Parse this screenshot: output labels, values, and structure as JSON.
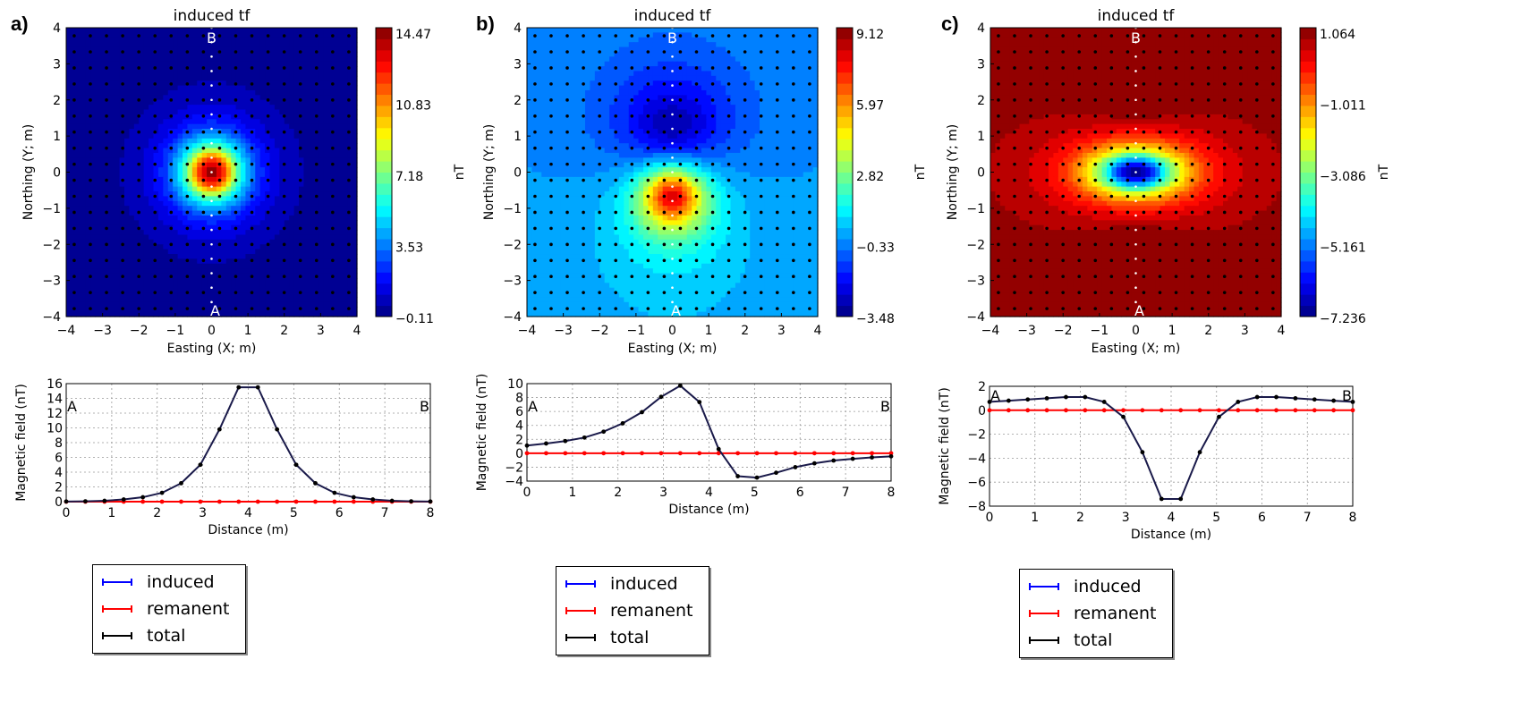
{
  "panels": [
    {
      "label": "a)",
      "map": {
        "title": "induced tf",
        "xlabel": "Easting (X; m)",
        "ylabel": "Northing (Y; m)",
        "cbar_label": "nT",
        "cbar_ticks": [
          "14.47",
          "10.83",
          "7.18",
          "3.53",
          "−0.11"
        ],
        "start_label": "A",
        "end_label": "B"
      },
      "profile": {
        "xlabel": "Distance (m)",
        "ylabel": "Magnetic field (nT)",
        "start_label": "A",
        "end_label": "B"
      }
    },
    {
      "label": "b)",
      "map": {
        "title": "induced tf",
        "xlabel": "Easting (X; m)",
        "ylabel": "Northing (Y; m)",
        "cbar_label": "nT",
        "cbar_ticks": [
          "9.12",
          "5.97",
          "2.82",
          "−0.33",
          "−3.48"
        ],
        "start_label": "A",
        "end_label": "B"
      },
      "profile": {
        "xlabel": "Distance (m)",
        "ylabel": "Magnetic field (nT)",
        "start_label": "A",
        "end_label": "B"
      }
    },
    {
      "label": "c)",
      "map": {
        "title": "induced tf",
        "xlabel": "Easting (X; m)",
        "ylabel": "Northing (Y; m)",
        "cbar_label": "nT",
        "cbar_ticks": [
          "1.064",
          "−1.011",
          "−3.086",
          "−5.161",
          "−7.236"
        ],
        "start_label": "A",
        "end_label": "B"
      },
      "profile": {
        "xlabel": "Distance (m)",
        "ylabel": "Magnetic field (nT)",
        "start_label": "A",
        "end_label": "B"
      }
    }
  ],
  "legend": {
    "items": [
      {
        "label": "induced",
        "color": "#0000ff"
      },
      {
        "label": "remanent",
        "color": "#ff0000"
      },
      {
        "label": "total",
        "color": "#000000"
      }
    ]
  },
  "chart_data": [
    {
      "type": "heatmap",
      "panel": "a",
      "title": "induced tf",
      "xlabel": "Easting (X; m)",
      "ylabel": "Northing (Y; m)",
      "xlim": [
        -4,
        4
      ],
      "ylim": [
        -4,
        4
      ],
      "x_ticks": [
        -4,
        -3,
        -2,
        -1,
        0,
        1,
        2,
        3,
        4
      ],
      "y_ticks": [
        -4,
        -3,
        -2,
        -1,
        0,
        1,
        2,
        3,
        4
      ],
      "colorbar": {
        "label": "nT",
        "min": -0.11,
        "max": 14.47,
        "ticks": [
          14.47,
          10.83,
          7.18,
          3.53,
          -0.11
        ],
        "colormap": "jet"
      },
      "description": "Single positive monopole-like anomaly centered at (0, 0), peak ~14.5 nT, decaying radially",
      "anomaly": {
        "kind": "positive",
        "center": [
          0,
          0
        ]
      },
      "profile_line": {
        "start": "A",
        "end": "B",
        "from": [
          0,
          -4
        ],
        "to": [
          0,
          4
        ]
      }
    },
    {
      "type": "heatmap",
      "panel": "b",
      "title": "induced tf",
      "xlabel": "Easting (X; m)",
      "ylabel": "Northing (Y; m)",
      "xlim": [
        -4,
        4
      ],
      "ylim": [
        -4,
        4
      ],
      "x_ticks": [
        -4,
        -3,
        -2,
        -1,
        0,
        1,
        2,
        3,
        4
      ],
      "y_ticks": [
        -4,
        -3,
        -2,
        -1,
        0,
        1,
        2,
        3,
        4
      ],
      "colorbar": {
        "label": "nT",
        "min": -3.48,
        "max": 9.12,
        "ticks": [
          9.12,
          5.97,
          2.82,
          -0.33,
          -3.48
        ],
        "colormap": "jet"
      },
      "description": "Dipole anomaly: positive high near (0, -0.65), negative low near (0, 1)",
      "anomaly": {
        "kind": "dipole",
        "positive_center": [
          0,
          -0.65
        ],
        "negative_center": [
          0,
          1.0
        ]
      },
      "profile_line": {
        "start": "A",
        "end": "B",
        "from": [
          0,
          -4
        ],
        "to": [
          0,
          4
        ]
      }
    },
    {
      "type": "heatmap",
      "panel": "c",
      "title": "induced tf",
      "xlabel": "Easting (X; m)",
      "ylabel": "Northing (Y; m)",
      "xlim": [
        -4,
        4
      ],
      "ylim": [
        -4,
        4
      ],
      "x_ticks": [
        -4,
        -3,
        -2,
        -1,
        0,
        1,
        2,
        3,
        4
      ],
      "y_ticks": [
        -4,
        -3,
        -2,
        -1,
        0,
        1,
        2,
        3,
        4
      ],
      "colorbar": {
        "label": "nT",
        "min": -7.236,
        "max": 1.064,
        "ticks": [
          1.064,
          -1.011,
          -3.086,
          -5.161,
          -7.236
        ],
        "colormap": "jet"
      },
      "description": "Negative anomaly elongated east-west at (0, 0), flanked by positive lobes north (0, 2.6) and south (0, -2.6)",
      "anomaly": {
        "kind": "negative",
        "center": [
          0,
          0
        ],
        "side_lobes": [
          [
            0,
            2.6
          ],
          [
            0,
            -2.6
          ]
        ]
      },
      "profile_line": {
        "start": "A",
        "end": "B",
        "from": [
          0,
          -4
        ],
        "to": [
          0,
          4
        ]
      }
    },
    {
      "type": "line",
      "panel": "a",
      "xlabel": "Distance (m)",
      "ylabel": "Magnetic field (nT)",
      "xlim": [
        0,
        8
      ],
      "ylim": [
        0,
        16
      ],
      "x_ticks": [
        0,
        1,
        2,
        3,
        4,
        5,
        6,
        7,
        8
      ],
      "y_ticks": [
        0,
        2,
        4,
        6,
        8,
        10,
        12,
        14,
        16
      ],
      "grid": true,
      "x": [
        0,
        0.421,
        0.842,
        1.263,
        1.684,
        2.105,
        2.526,
        2.947,
        3.368,
        3.789,
        4.211,
        4.632,
        5.053,
        5.474,
        5.895,
        6.316,
        6.737,
        7.158,
        7.579,
        8.0
      ],
      "series": [
        {
          "name": "induced",
          "color": "#0000ff",
          "values": [
            0.02,
            0.05,
            0.12,
            0.3,
            0.6,
            1.2,
            2.5,
            5.0,
            9.8,
            15.5,
            15.5,
            9.8,
            5.0,
            2.5,
            1.2,
            0.6,
            0.3,
            0.12,
            0.05,
            0.02
          ]
        },
        {
          "name": "remanent",
          "color": "#ff0000",
          "values": [
            0,
            0,
            0,
            0,
            0,
            0,
            0,
            0,
            0,
            0,
            0,
            0,
            0,
            0,
            0,
            0,
            0,
            0,
            0,
            0
          ]
        },
        {
          "name": "total",
          "color": "#000000",
          "values": [
            0.02,
            0.05,
            0.12,
            0.3,
            0.6,
            1.2,
            2.5,
            5.0,
            9.8,
            15.5,
            15.5,
            9.8,
            5.0,
            2.5,
            1.2,
            0.6,
            0.3,
            0.12,
            0.05,
            0.02
          ]
        }
      ],
      "annotations": [
        {
          "text": "A",
          "position": "top-left"
        },
        {
          "text": "B",
          "position": "top-right"
        }
      ],
      "legend": "below"
    },
    {
      "type": "line",
      "panel": "b",
      "xlabel": "Distance (m)",
      "ylabel": "Magnetic field (nT)",
      "xlim": [
        0,
        8
      ],
      "ylim": [
        -4,
        10
      ],
      "x_ticks": [
        0,
        1,
        2,
        3,
        4,
        5,
        6,
        7,
        8
      ],
      "y_ticks": [
        -4,
        -2,
        0,
        2,
        4,
        6,
        8,
        10
      ],
      "grid": true,
      "x": [
        0,
        0.421,
        0.842,
        1.263,
        1.684,
        2.105,
        2.526,
        2.947,
        3.368,
        3.789,
        4.211,
        4.632,
        5.053,
        5.474,
        5.895,
        6.316,
        6.737,
        7.158,
        7.579,
        8.0
      ],
      "series": [
        {
          "name": "induced",
          "color": "#0000ff",
          "values": [
            1.1,
            1.4,
            1.75,
            2.25,
            3.1,
            4.3,
            5.9,
            8.1,
            9.7,
            7.35,
            0.6,
            -3.3,
            -3.5,
            -2.8,
            -2.0,
            -1.45,
            -1.05,
            -0.8,
            -0.6,
            -0.45
          ]
        },
        {
          "name": "remanent",
          "color": "#ff0000",
          "values": [
            0,
            0,
            0,
            0,
            0,
            0,
            0,
            0,
            0,
            0,
            0,
            0,
            0,
            0,
            0,
            0,
            0,
            0,
            0,
            0
          ]
        },
        {
          "name": "total",
          "color": "#000000",
          "values": [
            1.1,
            1.4,
            1.75,
            2.25,
            3.1,
            4.3,
            5.9,
            8.1,
            9.7,
            7.35,
            0.6,
            -3.3,
            -3.5,
            -2.8,
            -2.0,
            -1.45,
            -1.05,
            -0.8,
            -0.6,
            -0.45
          ]
        }
      ],
      "annotations": [
        {
          "text": "A",
          "position": "top-left"
        },
        {
          "text": "B",
          "position": "top-right"
        }
      ],
      "legend": "below"
    },
    {
      "type": "line",
      "panel": "c",
      "xlabel": "Distance (m)",
      "ylabel": "Magnetic field (nT)",
      "xlim": [
        0,
        8
      ],
      "ylim": [
        -8,
        2
      ],
      "x_ticks": [
        0,
        1,
        2,
        3,
        4,
        5,
        6,
        7,
        8
      ],
      "y_ticks": [
        -8,
        -6,
        -4,
        -2,
        0,
        2
      ],
      "grid": true,
      "x": [
        0,
        0.421,
        0.842,
        1.263,
        1.684,
        2.105,
        2.526,
        2.947,
        3.368,
        3.789,
        4.211,
        4.632,
        5.053,
        5.474,
        5.895,
        6.316,
        6.737,
        7.158,
        7.579,
        8.0
      ],
      "series": [
        {
          "name": "induced",
          "color": "#0000ff",
          "values": [
            0.7,
            0.8,
            0.9,
            1.0,
            1.1,
            1.1,
            0.7,
            -0.55,
            -3.5,
            -7.4,
            -7.4,
            -3.5,
            -0.55,
            0.7,
            1.1,
            1.1,
            1.0,
            0.9,
            0.8,
            0.7
          ]
        },
        {
          "name": "remanent",
          "color": "#ff0000",
          "values": [
            0,
            0,
            0,
            0,
            0,
            0,
            0,
            0,
            0,
            0,
            0,
            0,
            0,
            0,
            0,
            0,
            0,
            0,
            0,
            0
          ]
        },
        {
          "name": "total",
          "color": "#000000",
          "values": [
            0.7,
            0.8,
            0.9,
            1.0,
            1.1,
            1.1,
            0.7,
            -0.55,
            -3.5,
            -7.4,
            -7.4,
            -3.5,
            -0.55,
            0.7,
            1.1,
            1.1,
            1.0,
            0.9,
            0.8,
            0.7
          ]
        }
      ],
      "annotations": [
        {
          "text": "A",
          "position": "top-left"
        },
        {
          "text": "B",
          "position": "top-right"
        }
      ],
      "legend": "below"
    }
  ]
}
